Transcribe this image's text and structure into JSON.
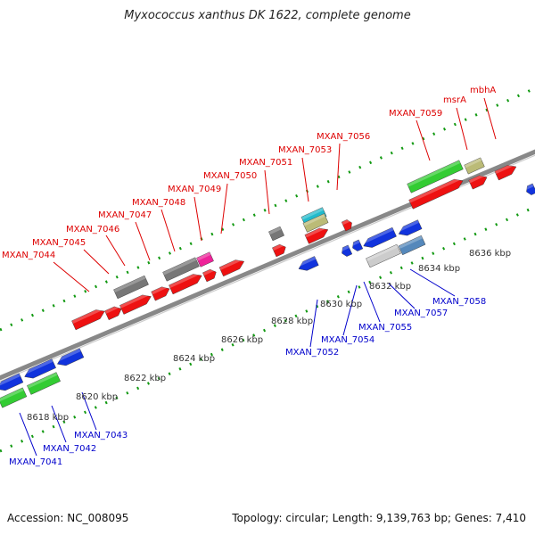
{
  "title": "Myxococcus xanthus DK 1622, complete genome",
  "footer": {
    "accession": "Accession: NC_008095",
    "summary": "Topology: circular; Length: 9,139,763 bp; Genes: 7,410"
  },
  "colors": {
    "red": "#ee1111",
    "blue": "#1133dd",
    "green": "#33cc33",
    "gray": "#777777",
    "magenta": "#ee2299",
    "tan": "#bbbb77",
    "cyan": "#22bbcc",
    "steel": "#5588bb",
    "lightgray": "#cccccc",
    "backbone": "#888888",
    "tick": "#119911",
    "redLabel": "#dd0000",
    "blueLabel": "#0000cc"
  },
  "scale_labels": [
    {
      "text": "8618 kbp"
    },
    {
      "text": "8620 kbp"
    },
    {
      "text": "8622 kbp"
    },
    {
      "text": "8624 kbp"
    },
    {
      "text": "8626 kbp"
    },
    {
      "text": "8628 kbp"
    },
    {
      "text": "8630 kbp"
    },
    {
      "text": "8632 kbp"
    },
    {
      "text": "8634 kbp"
    },
    {
      "text": "8636 kbp"
    }
  ],
  "gene_labels_top": [
    {
      "text": "MXAN_7044"
    },
    {
      "text": "MXAN_7045"
    },
    {
      "text": "MXAN_7046"
    },
    {
      "text": "MXAN_7047"
    },
    {
      "text": "MXAN_7048"
    },
    {
      "text": "MXAN_7049"
    },
    {
      "text": "MXAN_7050"
    },
    {
      "text": "MXAN_7051"
    },
    {
      "text": "MXAN_7053"
    },
    {
      "text": "MXAN_7056"
    },
    {
      "text": "MXAN_7059"
    },
    {
      "text": "msrA"
    },
    {
      "text": "mbhA"
    }
  ],
  "gene_labels_bottom": [
    {
      "text": "MXAN_7041"
    },
    {
      "text": "MXAN_7042"
    },
    {
      "text": "MXAN_7043"
    },
    {
      "text": "MXAN_7052"
    },
    {
      "text": "MXAN_7054"
    },
    {
      "text": "MXAN_7055"
    },
    {
      "text": "MXAN_7057"
    },
    {
      "text": "MXAN_7058"
    }
  ]
}
